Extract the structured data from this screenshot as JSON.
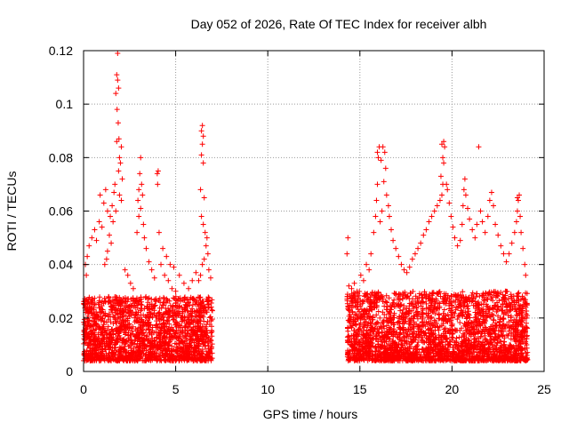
{
  "chart_data": {
    "type": "scatter",
    "title": "Day 052 of 2026, Rate Of TEC Index for receiver albh",
    "xlabel": "GPS time / hours",
    "ylabel": "ROTI / TECUs",
    "xlim": [
      0,
      25
    ],
    "ylim": [
      0,
      0.12
    ],
    "xticks": [
      0,
      5,
      10,
      15,
      20,
      25
    ],
    "xtick_labels": [
      "0",
      "5",
      "10",
      "15",
      "20",
      "25"
    ],
    "yticks": [
      0,
      0.02,
      0.04,
      0.06,
      0.08,
      0.1,
      0.12
    ],
    "ytick_labels": [
      "0",
      "0.02",
      "0.04",
      "0.06",
      "0.08",
      "0.1",
      "0.12"
    ],
    "grid": true,
    "marker": "+",
    "color": "#ff0000",
    "series": [
      {
        "points": [
          [
            1.85,
            0.119
          ],
          [
            1.8,
            0.111
          ],
          [
            1.85,
            0.109
          ],
          [
            1.9,
            0.106
          ],
          [
            1.75,
            0.104
          ],
          [
            1.82,
            0.098
          ],
          [
            1.88,
            0.093
          ],
          [
            1.92,
            0.087
          ],
          [
            1.8,
            0.086
          ],
          [
            2.05,
            0.084
          ],
          [
            1.95,
            0.08
          ],
          [
            2.0,
            0.078
          ],
          [
            1.9,
            0.075
          ],
          [
            2.1,
            0.072
          ],
          [
            1.7,
            0.07
          ],
          [
            1.65,
            0.067
          ],
          [
            1.95,
            0.066
          ],
          [
            2.05,
            0.064
          ],
          [
            1.55,
            0.062
          ],
          [
            1.75,
            0.06
          ],
          [
            1.45,
            0.058
          ],
          [
            1.6,
            0.056
          ],
          [
            1.2,
            0.068
          ],
          [
            0.9,
            0.066
          ],
          [
            1.1,
            0.063
          ],
          [
            1.3,
            0.06
          ],
          [
            0.85,
            0.056
          ],
          [
            1.0,
            0.054
          ],
          [
            0.6,
            0.053
          ],
          [
            0.45,
            0.05
          ],
          [
            0.7,
            0.049
          ],
          [
            0.3,
            0.047
          ],
          [
            0.2,
            0.043
          ],
          [
            0.1,
            0.04
          ],
          [
            0.15,
            0.036
          ],
          [
            1.4,
            0.051
          ],
          [
            1.5,
            0.048
          ],
          [
            1.3,
            0.045
          ],
          [
            1.25,
            0.042
          ],
          [
            1.15,
            0.04
          ],
          [
            2.25,
            0.038
          ],
          [
            2.4,
            0.036
          ],
          [
            2.55,
            0.033
          ],
          [
            2.7,
            0.031
          ],
          [
            3.1,
            0.08
          ],
          [
            3.05,
            0.074
          ],
          [
            3.15,
            0.07
          ],
          [
            3.0,
            0.068
          ],
          [
            3.2,
            0.066
          ],
          [
            2.95,
            0.064
          ],
          [
            3.1,
            0.061
          ],
          [
            3.0,
            0.058
          ],
          [
            3.25,
            0.055
          ],
          [
            2.9,
            0.052
          ],
          [
            3.3,
            0.05
          ],
          [
            3.4,
            0.046
          ],
          [
            3.55,
            0.041
          ],
          [
            3.7,
            0.038
          ],
          [
            3.85,
            0.035
          ],
          [
            4.05,
            0.075
          ],
          [
            4.0,
            0.074
          ],
          [
            4.02,
            0.07
          ],
          [
            4.1,
            0.052
          ],
          [
            4.2,
            0.04
          ],
          [
            4.4,
            0.036
          ],
          [
            4.6,
            0.034
          ],
          [
            4.8,
            0.031
          ],
          [
            5.0,
            0.03
          ],
          [
            4.3,
            0.046
          ],
          [
            4.5,
            0.043
          ],
          [
            4.7,
            0.04
          ],
          [
            4.9,
            0.039
          ],
          [
            5.2,
            0.036
          ],
          [
            5.45,
            0.033
          ],
          [
            5.7,
            0.031
          ],
          [
            5.9,
            0.034
          ],
          [
            6.1,
            0.037
          ],
          [
            6.45,
            0.092
          ],
          [
            6.4,
            0.09
          ],
          [
            6.5,
            0.088
          ],
          [
            6.45,
            0.085
          ],
          [
            6.4,
            0.081
          ],
          [
            6.5,
            0.078
          ],
          [
            6.35,
            0.068
          ],
          [
            6.55,
            0.065
          ],
          [
            6.4,
            0.058
          ],
          [
            6.5,
            0.055
          ],
          [
            6.6,
            0.052
          ],
          [
            6.7,
            0.05
          ],
          [
            6.65,
            0.047
          ],
          [
            6.75,
            0.044
          ],
          [
            6.55,
            0.042
          ],
          [
            6.45,
            0.04
          ],
          [
            6.8,
            0.038
          ],
          [
            6.9,
            0.035
          ],
          [
            6.35,
            0.036
          ],
          [
            6.25,
            0.034
          ],
          [
            14.35,
            0.05
          ],
          [
            14.3,
            0.044
          ],
          [
            14.4,
            0.032
          ],
          [
            14.55,
            0.031
          ],
          [
            14.7,
            0.033
          ],
          [
            14.85,
            0.03
          ],
          [
            15.05,
            0.036
          ],
          [
            15.2,
            0.034
          ],
          [
            15.35,
            0.04
          ],
          [
            15.5,
            0.038
          ],
          [
            15.6,
            0.044
          ],
          [
            15.75,
            0.052
          ],
          [
            15.85,
            0.058
          ],
          [
            15.9,
            0.064
          ],
          [
            15.95,
            0.07
          ],
          [
            16.0,
            0.08
          ],
          [
            15.95,
            0.082
          ],
          [
            16.05,
            0.084
          ],
          [
            16.15,
            0.079
          ],
          [
            16.25,
            0.084
          ],
          [
            16.35,
            0.082
          ],
          [
            16.4,
            0.076
          ],
          [
            16.3,
            0.071
          ],
          [
            16.45,
            0.066
          ],
          [
            16.55,
            0.062
          ],
          [
            16.6,
            0.058
          ],
          [
            16.2,
            0.06
          ],
          [
            16.1,
            0.056
          ],
          [
            16.7,
            0.053
          ],
          [
            16.8,
            0.049
          ],
          [
            16.95,
            0.046
          ],
          [
            17.1,
            0.043
          ],
          [
            17.25,
            0.04
          ],
          [
            17.4,
            0.038
          ],
          [
            17.55,
            0.037
          ],
          [
            17.7,
            0.039
          ],
          [
            17.85,
            0.042
          ],
          [
            18.0,
            0.044
          ],
          [
            18.15,
            0.046
          ],
          [
            18.3,
            0.048
          ],
          [
            18.45,
            0.051
          ],
          [
            18.6,
            0.053
          ],
          [
            18.75,
            0.056
          ],
          [
            18.9,
            0.058
          ],
          [
            19.05,
            0.06
          ],
          [
            19.2,
            0.062
          ],
          [
            19.35,
            0.064
          ],
          [
            19.45,
            0.066
          ],
          [
            19.5,
            0.07
          ],
          [
            19.4,
            0.073
          ],
          [
            19.55,
            0.078
          ],
          [
            19.5,
            0.08
          ],
          [
            19.6,
            0.084
          ],
          [
            19.45,
            0.085
          ],
          [
            19.55,
            0.086
          ],
          [
            19.7,
            0.07
          ],
          [
            19.75,
            0.068
          ],
          [
            19.85,
            0.063
          ],
          [
            19.95,
            0.058
          ],
          [
            20.05,
            0.054
          ],
          [
            20.15,
            0.05
          ],
          [
            20.3,
            0.047
          ],
          [
            20.45,
            0.049
          ],
          [
            20.55,
            0.055
          ],
          [
            20.6,
            0.062
          ],
          [
            20.65,
            0.068
          ],
          [
            20.7,
            0.072
          ],
          [
            20.75,
            0.066
          ],
          [
            20.85,
            0.061
          ],
          [
            20.95,
            0.057
          ],
          [
            21.1,
            0.053
          ],
          [
            21.25,
            0.05
          ],
          [
            21.35,
            0.055
          ],
          [
            21.45,
            0.084
          ],
          [
            21.55,
            0.06
          ],
          [
            21.65,
            0.056
          ],
          [
            21.8,
            0.052
          ],
          [
            21.95,
            0.058
          ],
          [
            22.05,
            0.064
          ],
          [
            22.15,
            0.067
          ],
          [
            22.25,
            0.062
          ],
          [
            22.35,
            0.055
          ],
          [
            22.5,
            0.051
          ],
          [
            22.65,
            0.047
          ],
          [
            22.8,
            0.044
          ],
          [
            22.95,
            0.041
          ],
          [
            23.1,
            0.044
          ],
          [
            23.25,
            0.048
          ],
          [
            23.4,
            0.052
          ],
          [
            23.5,
            0.056
          ],
          [
            23.55,
            0.06
          ],
          [
            23.6,
            0.064
          ],
          [
            23.65,
            0.066
          ],
          [
            23.55,
            0.065
          ],
          [
            23.7,
            0.058
          ],
          [
            23.75,
            0.052
          ],
          [
            23.85,
            0.046
          ],
          [
            23.95,
            0.04
          ],
          [
            24.0,
            0.036
          ]
        ],
        "dense_bands": [
          {
            "x": [
              0.0,
              7.0
            ],
            "y_min": 0.004,
            "y_max": 0.028
          },
          {
            "x": [
              14.3,
              24.1
            ],
            "y_min": 0.004,
            "y_max": 0.03
          }
        ]
      }
    ]
  }
}
